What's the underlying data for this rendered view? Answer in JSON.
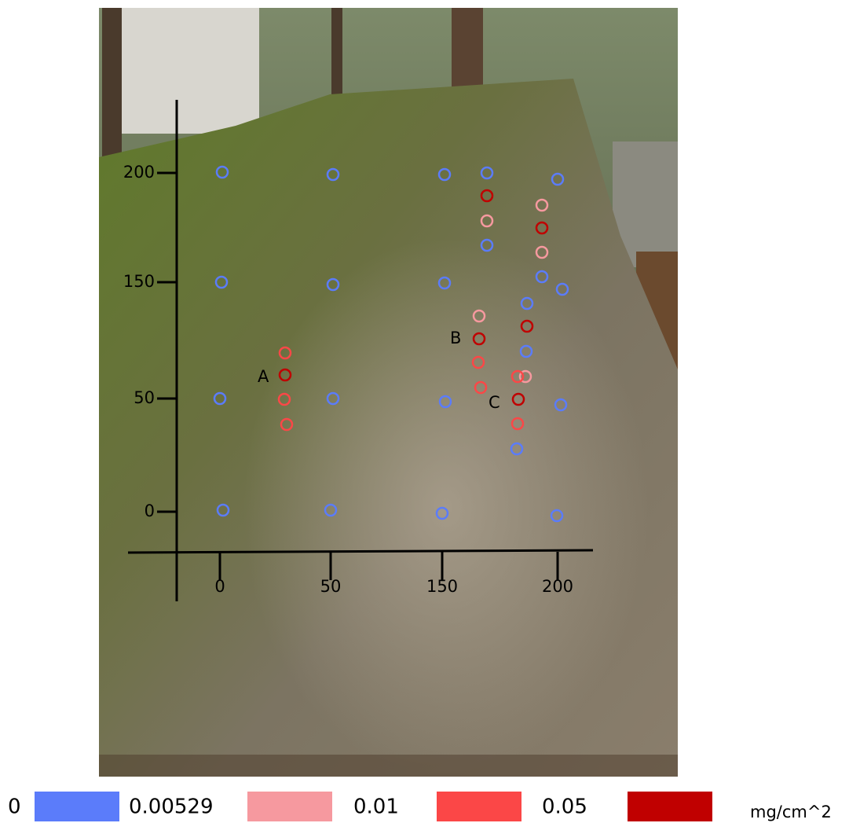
{
  "axes": {
    "x_ticks": [
      "0",
      "50",
      "150",
      "200"
    ],
    "y_ticks": [
      "200",
      "150",
      "50",
      "0"
    ]
  },
  "labels": [
    "A",
    "B",
    "C"
  ],
  "legend": {
    "items": [
      "0",
      "0.00529",
      "0.01",
      "0.05"
    ],
    "unit": "mg/cm^2"
  }
}
